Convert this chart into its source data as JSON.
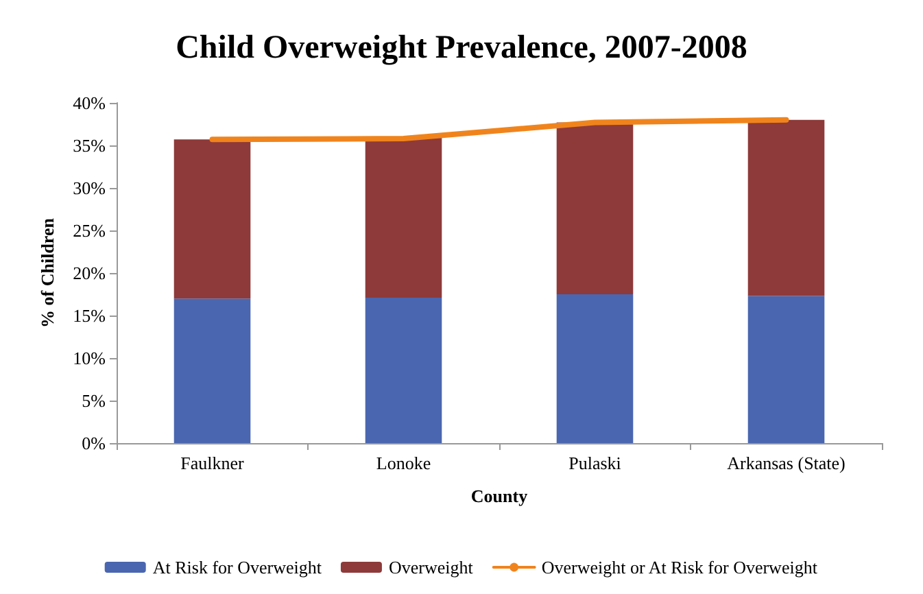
{
  "chart_data": {
    "type": "bar",
    "title": "Child Overweight Prevalence, 2007-2008",
    "xlabel": "County",
    "ylabel": "% of Children",
    "categories": [
      "Faulkner",
      "Lonoke",
      "Pulaski",
      "Arkansas (State)"
    ],
    "stacked": true,
    "series": [
      {
        "name": "At Risk for Overweight",
        "color": "#4a66b0",
        "values": [
          17.0,
          17.1,
          17.5,
          17.3
        ]
      },
      {
        "name": "Overweight",
        "color": "#8e3a3a",
        "values": [
          18.7,
          18.9,
          20.2,
          20.7
        ]
      },
      {
        "name": "Overweight or At Risk for Overweight",
        "type": "line",
        "color": "#f0841c",
        "values": [
          35.7,
          35.8,
          37.7,
          38.0
        ],
        "marker": "none"
      }
    ],
    "ylim": [
      0,
      40
    ],
    "yticks": [
      {
        "value": 0,
        "label": "0%"
      },
      {
        "value": 5,
        "label": "5%"
      },
      {
        "value": 10,
        "label": "10%"
      },
      {
        "value": 15,
        "label": "15%"
      },
      {
        "value": 20,
        "label": "20%"
      },
      {
        "value": 25,
        "label": "25%"
      },
      {
        "value": 30,
        "label": "30%"
      },
      {
        "value": 35,
        "label": "35%"
      },
      {
        "value": 40,
        "label": "40%"
      }
    ],
    "grid": false,
    "legend": "bottom"
  }
}
